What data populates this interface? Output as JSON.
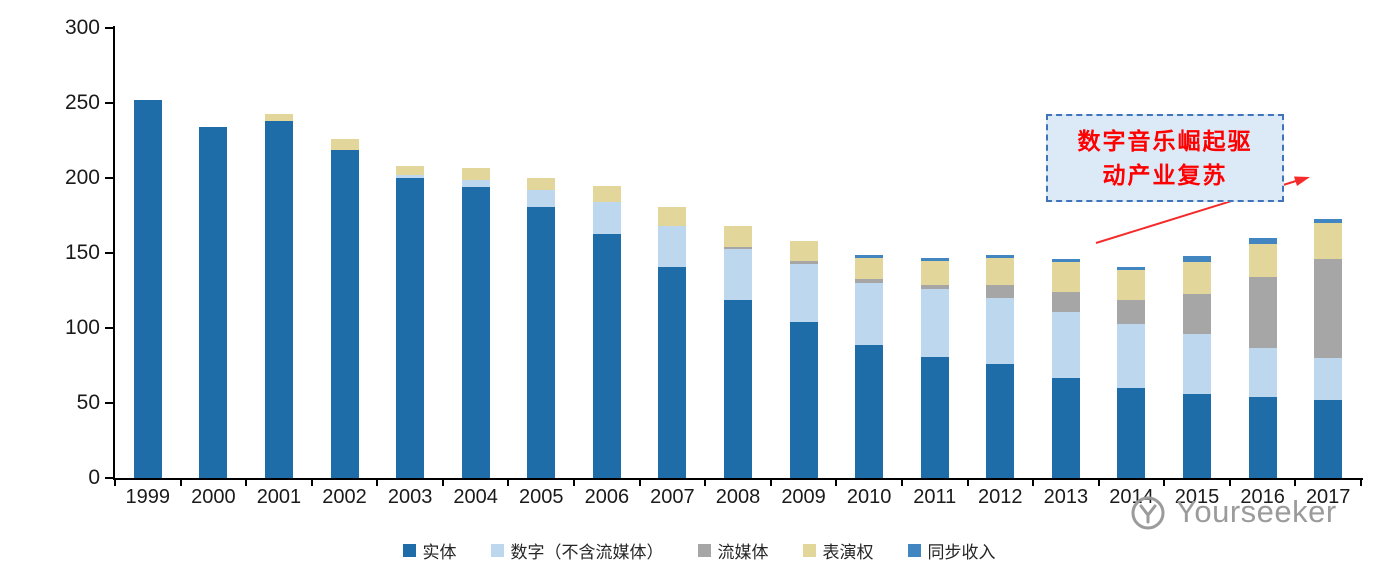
{
  "chart_data": {
    "type": "bar",
    "stacked": true,
    "title": "",
    "xlabel": "",
    "ylabel": "",
    "ylim": [
      0,
      300
    ],
    "yticks": [
      "0",
      "50",
      "100",
      "150",
      "200",
      "250",
      "300"
    ],
    "grid": false,
    "legend_position": "bottom",
    "categories": [
      "1999",
      "2000",
      "2001",
      "2002",
      "2003",
      "2004",
      "2005",
      "2006",
      "2007",
      "2008",
      "2009",
      "2010",
      "2011",
      "2012",
      "2013",
      "2014",
      "2015",
      "2016",
      "2017"
    ],
    "series": [
      {
        "key": "physical",
        "name": "实体",
        "color": "#1f6da8",
        "values": [
          252,
          234,
          238,
          219,
          200,
          194,
          181,
          163,
          141,
          119,
          104,
          89,
          81,
          76,
          67,
          60,
          56,
          54,
          52
        ]
      },
      {
        "key": "digital",
        "name": "数字（不含流媒体）",
        "color": "#bdd7ee",
        "values": [
          0,
          0,
          0,
          0,
          2,
          5,
          11,
          21,
          27,
          34,
          39,
          41,
          45,
          44,
          44,
          43,
          40,
          33,
          28
        ]
      },
      {
        "key": "streaming",
        "name": "流媒体",
        "color": "#a6a6a6",
        "values": [
          0,
          0,
          0,
          0,
          0,
          0,
          0,
          0,
          0,
          1,
          2,
          3,
          3,
          9,
          13,
          16,
          27,
          47,
          66
        ]
      },
      {
        "key": "performance",
        "name": "表演权",
        "color": "#e3d69a",
        "values": [
          0,
          0,
          5,
          7,
          6,
          8,
          8,
          11,
          13,
          14,
          13,
          14,
          16,
          18,
          20,
          20,
          21,
          22,
          24
        ]
      },
      {
        "key": "sync",
        "name": "同步收入",
        "color": "#4186c0",
        "values": [
          0,
          0,
          0,
          0,
          0,
          0,
          0,
          0,
          0,
          0,
          0,
          2,
          2,
          2,
          2,
          2,
          4,
          4,
          3
        ]
      }
    ]
  },
  "annotation": {
    "text": "数字音乐崛起驱动产业复苏",
    "lines": [
      "数字音乐崛起驱",
      "动产业复苏"
    ],
    "text_color": "#ff0000",
    "box_border_color": "#3f74b9",
    "box_fill_color": "#dce9f7",
    "arrow_color": "#f52a2a"
  },
  "watermark": {
    "text": "Yourseeker",
    "color": "#9b9b9b"
  }
}
